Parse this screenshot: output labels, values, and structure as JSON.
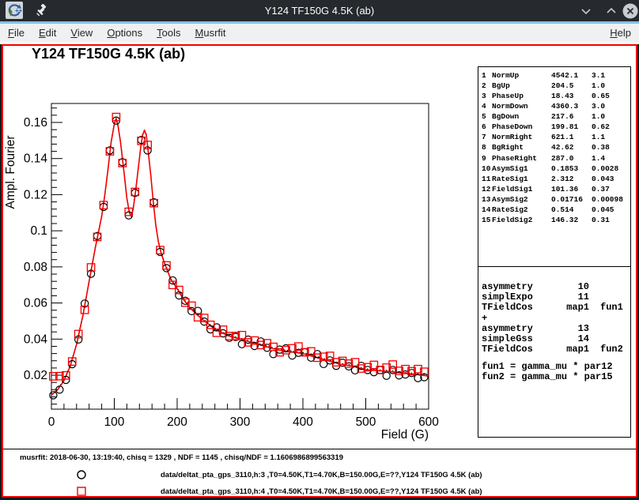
{
  "window": {
    "title": "Y124 TF150G 4.5K (ab)",
    "app_icon": "root-logo",
    "controls": {
      "minimize": "chevron-down",
      "maximize": "chevron-up",
      "close": "x-circle"
    }
  },
  "menu": {
    "items": [
      {
        "label": "File",
        "mnemonic": 0
      },
      {
        "label": "Edit",
        "mnemonic": 0
      },
      {
        "label": "View",
        "mnemonic": 0
      },
      {
        "label": "Options",
        "mnemonic": 0
      },
      {
        "label": "Tools",
        "mnemonic": 0
      },
      {
        "label": "Musrfit",
        "mnemonic": 0
      }
    ],
    "right_item": {
      "label": "Help",
      "mnemonic": 0
    }
  },
  "chart_data": {
    "type": "scatter",
    "title": "Y124 TF150G 4.5K (ab)",
    "xlabel": "Field (G)",
    "ylabel": "Ampl. Fourier",
    "xlim": [
      0,
      600
    ],
    "ylim": [
      0.0012,
      0.1705
    ],
    "x_major_ticks": [
      0,
      100,
      200,
      300,
      400,
      500,
      600
    ],
    "x_minor_step": 20,
    "y_major_ticks": [
      0.02,
      0.04,
      0.06,
      0.08,
      0.1,
      0.12,
      0.14,
      0.16
    ],
    "y_minor_step": 0.004,
    "grid": false,
    "fit_curve": [
      [
        0,
        0.009
      ],
      [
        10,
        0.012
      ],
      [
        20,
        0.017
      ],
      [
        30,
        0.025
      ],
      [
        40,
        0.037
      ],
      [
        50,
        0.053
      ],
      [
        60,
        0.072
      ],
      [
        70,
        0.091
      ],
      [
        80,
        0.108
      ],
      [
        85,
        0.12
      ],
      [
        90,
        0.134
      ],
      [
        95,
        0.149
      ],
      [
        100,
        0.159
      ],
      [
        103,
        0.162
      ],
      [
        106,
        0.158
      ],
      [
        110,
        0.149
      ],
      [
        115,
        0.134
      ],
      [
        120,
        0.118
      ],
      [
        124,
        0.11
      ],
      [
        127,
        0.108
      ],
      [
        130,
        0.112
      ],
      [
        134,
        0.122
      ],
      [
        138,
        0.134
      ],
      [
        142,
        0.146
      ],
      [
        145,
        0.153
      ],
      [
        148,
        0.1555
      ],
      [
        151,
        0.153
      ],
      [
        154,
        0.144
      ],
      [
        158,
        0.131
      ],
      [
        162,
        0.116
      ],
      [
        166,
        0.103
      ],
      [
        170,
        0.094
      ],
      [
        175,
        0.087
      ],
      [
        180,
        0.082
      ],
      [
        190,
        0.073
      ],
      [
        200,
        0.068
      ],
      [
        210,
        0.062
      ],
      [
        220,
        0.0575
      ],
      [
        230,
        0.054
      ],
      [
        240,
        0.051
      ],
      [
        260,
        0.0455
      ],
      [
        280,
        0.042
      ],
      [
        300,
        0.04
      ],
      [
        320,
        0.038
      ],
      [
        340,
        0.036
      ],
      [
        360,
        0.034
      ],
      [
        380,
        0.033
      ],
      [
        400,
        0.032
      ],
      [
        420,
        0.03
      ],
      [
        440,
        0.028
      ],
      [
        460,
        0.026
      ],
      [
        480,
        0.025
      ],
      [
        500,
        0.023
      ],
      [
        520,
        0.0225
      ],
      [
        540,
        0.022
      ],
      [
        560,
        0.021
      ],
      [
        580,
        0.0205
      ],
      [
        600,
        0.0195
      ]
    ],
    "series": [
      {
        "name": "h:3",
        "marker": "open-circle",
        "color": "#000000",
        "points": [
          [
            3,
            0.0089
          ],
          [
            13,
            0.012
          ],
          [
            23,
            0.0174
          ],
          [
            33,
            0.0261
          ],
          [
            43,
            0.0398
          ],
          [
            53,
            0.0597
          ],
          [
            63,
            0.0762
          ],
          [
            73,
            0.0971
          ],
          [
            83,
            0.1132
          ],
          [
            93,
            0.1445
          ],
          [
            103,
            0.161
          ],
          [
            113,
            0.138
          ],
          [
            123,
            0.1085
          ],
          [
            133,
            0.121
          ],
          [
            143,
            0.1503
          ],
          [
            153,
            0.1445
          ],
          [
            163,
            0.1158
          ],
          [
            173,
            0.0883
          ],
          [
            183,
            0.0793
          ],
          [
            193,
            0.0725
          ],
          [
            203,
            0.0642
          ],
          [
            213,
            0.0612
          ],
          [
            223,
            0.0555
          ],
          [
            233,
            0.0556
          ],
          [
            243,
            0.0497
          ],
          [
            253,
            0.0454
          ],
          [
            263,
            0.0465
          ],
          [
            273,
            0.0432
          ],
          [
            283,
            0.0407
          ],
          [
            293,
            0.0412
          ],
          [
            303,
            0.0372
          ],
          [
            313,
            0.0397
          ],
          [
            323,
            0.0362
          ],
          [
            333,
            0.0387
          ],
          [
            343,
            0.0352
          ],
          [
            353,
            0.0317
          ],
          [
            363,
            0.0342
          ],
          [
            373,
            0.0349
          ],
          [
            383,
            0.0309
          ],
          [
            393,
            0.0324
          ],
          [
            403,
            0.0327
          ],
          [
            413,
            0.0297
          ],
          [
            423,
            0.0317
          ],
          [
            433,
            0.0262
          ],
          [
            443,
            0.0282
          ],
          [
            453,
            0.0252
          ],
          [
            463,
            0.0269
          ],
          [
            473,
            0.0249
          ],
          [
            483,
            0.0227
          ],
          [
            493,
            0.0252
          ],
          [
            503,
            0.0229
          ],
          [
            513,
            0.0217
          ],
          [
            523,
            0.0229
          ],
          [
            533,
            0.0197
          ],
          [
            543,
            0.0229
          ],
          [
            553,
            0.0199
          ],
          [
            563,
            0.0204
          ],
          [
            573,
            0.0212
          ],
          [
            583,
            0.0184
          ],
          [
            593,
            0.0189
          ]
        ]
      },
      {
        "name": "h:4",
        "marker": "open-square",
        "color": "#f40000",
        "points": [
          [
            3,
            0.0194
          ],
          [
            13,
            0.0195
          ],
          [
            23,
            0.0199
          ],
          [
            33,
            0.0276
          ],
          [
            43,
            0.0428
          ],
          [
            53,
            0.0562
          ],
          [
            63,
            0.0797
          ],
          [
            73,
            0.0966
          ],
          [
            83,
            0.1142
          ],
          [
            93,
            0.144
          ],
          [
            103,
            0.163
          ],
          [
            113,
            0.1375
          ],
          [
            123,
            0.1105
          ],
          [
            133,
            0.1215
          ],
          [
            143,
            0.1498
          ],
          [
            153,
            0.1475
          ],
          [
            163,
            0.1153
          ],
          [
            173,
            0.0893
          ],
          [
            183,
            0.0808
          ],
          [
            193,
            0.07
          ],
          [
            203,
            0.0672
          ],
          [
            213,
            0.0602
          ],
          [
            223,
            0.0585
          ],
          [
            233,
            0.0521
          ],
          [
            243,
            0.0517
          ],
          [
            253,
            0.0479
          ],
          [
            263,
            0.0435
          ],
          [
            273,
            0.0452
          ],
          [
            283,
            0.0417
          ],
          [
            293,
            0.0417
          ],
          [
            303,
            0.0422
          ],
          [
            313,
            0.0382
          ],
          [
            323,
            0.0392
          ],
          [
            333,
            0.0367
          ],
          [
            343,
            0.0377
          ],
          [
            353,
            0.0357
          ],
          [
            363,
            0.0327
          ],
          [
            373,
            0.0339
          ],
          [
            383,
            0.0349
          ],
          [
            393,
            0.0359
          ],
          [
            403,
            0.0327
          ],
          [
            413,
            0.0332
          ],
          [
            423,
            0.0297
          ],
          [
            433,
            0.0302
          ],
          [
            443,
            0.0307
          ],
          [
            453,
            0.0272
          ],
          [
            463,
            0.0279
          ],
          [
            473,
            0.0264
          ],
          [
            483,
            0.0272
          ],
          [
            493,
            0.0237
          ],
          [
            503,
            0.0244
          ],
          [
            513,
            0.0257
          ],
          [
            523,
            0.0229
          ],
          [
            533,
            0.0242
          ],
          [
            543,
            0.0259
          ],
          [
            553,
            0.0224
          ],
          [
            563,
            0.0234
          ],
          [
            573,
            0.0222
          ],
          [
            583,
            0.0234
          ],
          [
            593,
            0.0219
          ]
        ]
      }
    ]
  },
  "params_panel": {
    "rows": [
      [
        "1",
        "NormUp",
        "4542.1",
        "3.1"
      ],
      [
        "2",
        "BgUp",
        "204.5",
        "1.0"
      ],
      [
        "3",
        "PhaseUp",
        "18.43",
        "0.65"
      ],
      [
        "4",
        "NormDown",
        "4360.3",
        "3.0"
      ],
      [
        "5",
        "BgDown",
        "217.6",
        "1.0"
      ],
      [
        "6",
        "PhaseDown",
        "199.81",
        "0.62"
      ],
      [
        "7",
        "NormRight",
        "621.1",
        "1.1"
      ],
      [
        "8",
        "BgRight",
        "42.62",
        "0.38"
      ],
      [
        "9",
        "PhaseRight",
        "287.0",
        "1.4"
      ],
      [
        "10",
        "AsymSig1",
        "0.1853",
        "0.0028"
      ],
      [
        "11",
        "RateSig1",
        "2.312",
        "0.043"
      ],
      [
        "12",
        "FieldSig1",
        "101.36",
        "0.37"
      ],
      [
        "13",
        "AsymSig2",
        "0.01716",
        "0.00098"
      ],
      [
        "14",
        "RateSig2",
        "0.514",
        "0.045"
      ],
      [
        "15",
        "FieldSig2",
        "146.32",
        "0.31"
      ]
    ]
  },
  "theory_panel": {
    "lines": [
      {
        "name": "asymmetry",
        "mid": "10",
        "right": ""
      },
      {
        "name": "simplExpo",
        "mid": "11",
        "right": ""
      },
      {
        "name": "TFieldCos",
        "mid": "map1",
        "right": "fun1"
      },
      {
        "name": "+",
        "mid": "",
        "right": ""
      },
      {
        "name": "asymmetry",
        "mid": "13",
        "right": ""
      },
      {
        "name": "simpleGss",
        "mid": "14",
        "right": ""
      },
      {
        "name": "TFieldCos",
        "mid": "map1",
        "right": "fun2"
      }
    ],
    "fun_lines": [
      "fun1 = gamma_mu * par12",
      "fun2 = gamma_mu * par15"
    ]
  },
  "footer": {
    "status": "musrfit: 2018-06-30, 13:19:40, chisq = 1329 , NDF = 1145 , chisq/NDF = 1.1606986899563319",
    "legend": [
      {
        "marker": "open-circle",
        "color": "#000000",
        "label": "data/deltat_pta_gps_3110,h:3 ,T0=4.50K,T1=4.70K,B=150.00G,E=??,Y124 TF150G 4.5K (ab)"
      },
      {
        "marker": "open-square",
        "color": "#f40000",
        "label": "data/deltat_pta_gps_3110,h:4 ,T0=4.50K,T1=4.70K,B=150.00G,E=??,Y124 TF150G 4.5K (ab)"
      }
    ]
  },
  "colors": {
    "accent_red": "#f40000",
    "titlebar": "#26292d",
    "menubar": "#eff0f1",
    "focus_line": "#7fc4e5"
  }
}
